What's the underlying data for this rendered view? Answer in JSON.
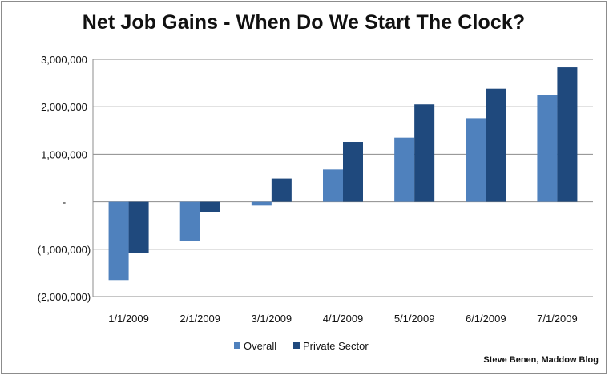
{
  "chart_data": {
    "type": "bar",
    "title": "Net Job Gains - When Do We Start The Clock?",
    "categories": [
      "1/1/2009",
      "2/1/2009",
      "3/1/2009",
      "4/1/2009",
      "5/1/2009",
      "6/1/2009",
      "7/1/2009"
    ],
    "series": [
      {
        "name": "Overall",
        "color": "#4f81bd",
        "values": [
          -1650000,
          -820000,
          -80000,
          680000,
          1350000,
          1760000,
          2250000
        ]
      },
      {
        "name": "Private Sector",
        "color": "#1f497d",
        "values": [
          -1080000,
          -220000,
          490000,
          1260000,
          2050000,
          2380000,
          2830000
        ]
      }
    ],
    "ylim": [
      -2000000,
      3000000
    ],
    "yticks": [
      {
        "value": 3000000,
        "label": "3,000,000"
      },
      {
        "value": 2000000,
        "label": "2,000,000"
      },
      {
        "value": 1000000,
        "label": "1,000,000"
      },
      {
        "value": 0,
        "label": "-"
      },
      {
        "value": -1000000,
        "label": "(1,000,000)"
      },
      {
        "value": -2000000,
        "label": "(2,000,000)"
      }
    ],
    "grid": true,
    "legend_position": "bottom",
    "credit": "Steve Benen, Maddow Blog"
  }
}
